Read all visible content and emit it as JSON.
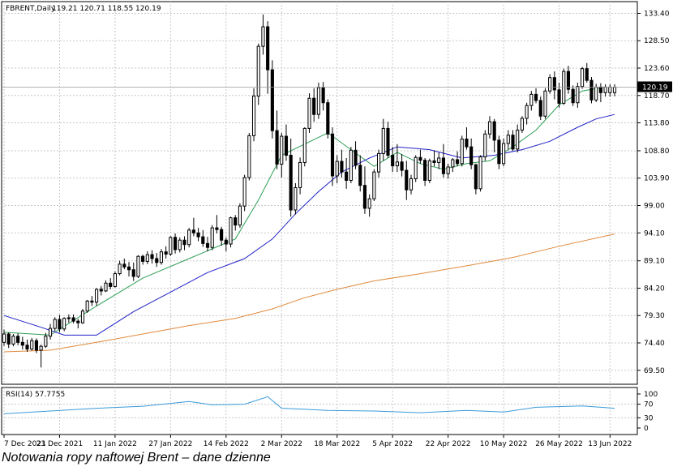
{
  "header": {
    "symbol": "FBRENT,Daily",
    "ohlc": "119.21 120.71 118.55 120.19"
  },
  "current_price_label": "120.19",
  "rsi_label": "RSI(14) 57.7755",
  "caption": "Notowania ropy naftowej Brent – dane dzienne",
  "colors": {
    "ma_fast": "#2e9e55",
    "ma_mid": "#2020c8",
    "ma_slow": "#e08a3c",
    "rsi": "#3a9ad9",
    "grid": "#c8c8c8",
    "candle": "#000000"
  },
  "chart_data": [
    {
      "type": "candlestick",
      "title": "FBRENT,Daily",
      "ylim": [
        67.0,
        135.5
      ],
      "y_ticks": [
        "133.40",
        "128.50",
        "123.60",
        "118.70",
        "113.80",
        "108.80",
        "103.90",
        "99.00",
        "94.10",
        "89.10",
        "84.20",
        "79.30",
        "74.40",
        "69.50"
      ],
      "x_ticks": [
        "7 Dec 2021",
        "23 Dec 2021",
        "11 Jan 2022",
        "27 Jan 2022",
        "14 Feb 2022",
        "2 Mar 2022",
        "18 Mar 2022",
        "5 Apr 2022",
        "22 Apr 2022",
        "10 May 2022",
        "26 May 2022",
        "13 Jun 2022"
      ],
      "x_tick_index": [
        0,
        12,
        24,
        36,
        48,
        60,
        72,
        84,
        96,
        108,
        120,
        131
      ],
      "grid": true,
      "ohlc": [
        [
          74.5,
          76.8,
          73.9,
          76.0
        ],
        [
          76.0,
          76.3,
          73.5,
          74.2
        ],
        [
          74.2,
          76.0,
          73.8,
          75.6
        ],
        [
          75.6,
          76.1,
          74.0,
          74.5
        ],
        [
          74.5,
          75.5,
          73.2,
          74.0
        ],
        [
          74.0,
          75.0,
          72.8,
          73.3
        ],
        [
          73.3,
          75.3,
          73.0,
          74.8
        ],
        [
          74.8,
          75.2,
          72.6,
          73.1
        ],
        [
          73.1,
          74.1,
          70.0,
          73.8
        ],
        [
          73.8,
          76.2,
          73.5,
          75.6
        ],
        [
          75.6,
          77.8,
          75.0,
          77.0
        ],
        [
          77.0,
          79.0,
          76.5,
          78.6
        ],
        [
          78.6,
          79.4,
          76.3,
          76.9
        ],
        [
          76.9,
          79.0,
          76.5,
          78.8
        ],
        [
          78.8,
          79.5,
          78.0,
          78.9
        ],
        [
          78.9,
          79.5,
          77.9,
          78.3
        ],
        [
          78.3,
          78.7,
          77.0,
          78.0
        ],
        [
          78.0,
          80.5,
          77.8,
          80.1
        ],
        [
          80.1,
          82.1,
          79.8,
          81.9
        ],
        [
          81.9,
          82.8,
          81.0,
          81.7
        ],
        [
          81.7,
          84.2,
          81.0,
          84.0
        ],
        [
          84.0,
          84.6,
          82.9,
          83.7
        ],
        [
          83.7,
          85.6,
          83.5,
          85.1
        ],
        [
          85.1,
          86.0,
          84.0,
          84.5
        ],
        [
          84.5,
          87.2,
          84.3,
          86.8
        ],
        [
          86.8,
          89.1,
          86.5,
          88.5
        ],
        [
          88.5,
          89.5,
          87.6,
          88.0
        ],
        [
          88.0,
          88.9,
          86.3,
          87.5
        ],
        [
          87.5,
          88.8,
          85.5,
          86.3
        ],
        [
          86.3,
          90.1,
          86.0,
          89.9
        ],
        [
          89.9,
          90.2,
          88.4,
          89.0
        ],
        [
          89.0,
          90.8,
          88.5,
          90.2
        ],
        [
          90.2,
          91.0,
          88.6,
          89.5
        ],
        [
          89.5,
          90.5,
          88.0,
          88.8
        ],
        [
          88.8,
          91.2,
          88.4,
          90.7
        ],
        [
          90.7,
          91.7,
          89.5,
          90.3
        ],
        [
          90.3,
          93.5,
          90.0,
          93.3
        ],
        [
          93.3,
          94.0,
          90.4,
          91.1
        ],
        [
          91.1,
          93.3,
          90.6,
          92.8
        ],
        [
          92.8,
          93.5,
          91.0,
          92.0
        ],
        [
          92.0,
          95.0,
          91.5,
          94.6
        ],
        [
          94.6,
          96.8,
          93.5,
          94.1
        ],
        [
          94.1,
          95.0,
          92.6,
          93.4
        ],
        [
          93.4,
          94.6,
          91.6,
          92.2
        ],
        [
          92.2,
          93.4,
          90.8,
          91.5
        ],
        [
          91.5,
          95.5,
          91.0,
          95.0
        ],
        [
          95.0,
          97.3,
          94.0,
          94.7
        ],
        [
          94.7,
          95.2,
          91.8,
          92.8
        ],
        [
          92.8,
          93.3,
          90.8,
          92.1
        ],
        [
          92.1,
          97.0,
          91.5,
          96.8
        ],
        [
          96.8,
          97.3,
          94.5,
          95.5
        ],
        [
          95.5,
          99.4,
          95.0,
          98.9
        ],
        [
          98.9,
          104.5,
          98.0,
          104.0
        ],
        [
          104.0,
          112.0,
          103.5,
          111.5
        ],
        [
          111.5,
          120.0,
          110.5,
          118.6
        ],
        [
          118.6,
          128.0,
          117.0,
          127.5
        ],
        [
          127.5,
          133.2,
          126.0,
          131.0
        ],
        [
          131.0,
          132.0,
          119.0,
          123.3
        ],
        [
          123.3,
          125.0,
          111.0,
          112.4
        ],
        [
          112.4,
          116.0,
          105.5,
          106.4
        ],
        [
          106.4,
          112.0,
          104.0,
          111.4
        ],
        [
          111.4,
          113.5,
          107.0,
          108.0
        ],
        [
          108.0,
          111.0,
          97.0,
          98.2
        ],
        [
          98.2,
          103.0,
          97.4,
          102.2
        ],
        [
          102.2,
          107.6,
          101.0,
          106.7
        ],
        [
          106.7,
          113.0,
          106.0,
          112.8
        ],
        [
          112.8,
          119.1,
          112.0,
          118.2
        ],
        [
          118.2,
          120.0,
          114.0,
          115.3
        ],
        [
          115.3,
          121.0,
          114.5,
          120.1
        ],
        [
          120.1,
          121.1,
          116.0,
          117.4
        ],
        [
          117.4,
          118.0,
          111.0,
          111.8
        ],
        [
          111.8,
          113.0,
          102.5,
          104.3
        ],
        [
          104.3,
          108.0,
          103.0,
          106.9
        ],
        [
          106.9,
          109.0,
          104.0,
          105.0
        ],
        [
          105.0,
          107.5,
          102.0,
          103.5
        ],
        [
          103.5,
          109.5,
          103.0,
          108.9
        ],
        [
          108.9,
          110.5,
          105.5,
          106.2
        ],
        [
          106.2,
          108.0,
          101.5,
          102.6
        ],
        [
          102.6,
          106.0,
          97.5,
          98.5
        ],
        [
          98.5,
          101.0,
          97.0,
          100.2
        ],
        [
          100.2,
          105.5,
          99.8,
          105.0
        ],
        [
          105.0,
          109.0,
          104.0,
          108.3
        ],
        [
          108.3,
          114.5,
          107.0,
          112.8
        ],
        [
          112.8,
          114.0,
          107.5,
          108.0
        ],
        [
          108.0,
          109.5,
          105.0,
          106.1
        ],
        [
          106.1,
          110.0,
          105.0,
          106.8
        ],
        [
          106.8,
          108.2,
          104.2,
          105.3
        ],
        [
          105.3,
          107.0,
          100.0,
          101.8
        ],
        [
          101.8,
          104.5,
          101.0,
          103.8
        ],
        [
          103.8,
          108.0,
          103.2,
          107.6
        ],
        [
          107.6,
          109.0,
          106.5,
          107.1
        ],
        [
          107.1,
          107.5,
          102.5,
          103.5
        ],
        [
          103.5,
          107.4,
          103.0,
          107.0
        ],
        [
          107.0,
          108.9,
          106.0,
          106.7
        ],
        [
          106.7,
          108.5,
          105.5,
          107.5
        ],
        [
          107.5,
          110.0,
          104.0,
          104.7
        ],
        [
          104.7,
          106.5,
          103.8,
          105.9
        ],
        [
          105.9,
          107.5,
          105.0,
          107.2
        ],
        [
          107.2,
          108.7,
          106.0,
          106.5
        ],
        [
          106.5,
          111.5,
          106.0,
          110.9
        ],
        [
          110.9,
          113.0,
          109.0,
          109.5
        ],
        [
          109.5,
          111.0,
          105.5,
          106.3
        ],
        [
          106.3,
          106.5,
          101.0,
          102.0
        ],
        [
          102.0,
          108.0,
          101.5,
          107.7
        ],
        [
          107.7,
          112.5,
          107.0,
          111.8
        ],
        [
          111.8,
          115.0,
          111.0,
          114.0
        ],
        [
          114.0,
          114.5,
          108.5,
          110.7
        ],
        [
          110.7,
          111.5,
          105.5,
          106.5
        ],
        [
          106.5,
          111.0,
          106.0,
          110.1
        ],
        [
          110.1,
          112.5,
          109.0,
          111.6
        ],
        [
          111.6,
          112.5,
          108.8,
          109.1
        ],
        [
          109.1,
          113.5,
          108.5,
          112.5
        ],
        [
          112.5,
          115.0,
          112.0,
          114.6
        ],
        [
          114.6,
          117.4,
          113.5,
          116.9
        ],
        [
          116.9,
          119.5,
          116.0,
          118.9
        ],
        [
          118.9,
          120.0,
          117.3,
          117.8
        ],
        [
          117.8,
          118.5,
          114.3,
          115.0
        ],
        [
          115.0,
          120.0,
          114.5,
          119.5
        ],
        [
          119.5,
          122.5,
          119.0,
          121.9
        ],
        [
          121.9,
          123.0,
          118.0,
          119.7
        ],
        [
          119.7,
          121.0,
          116.5,
          117.3
        ],
        [
          117.3,
          123.5,
          117.0,
          123.0
        ],
        [
          123.0,
          124.0,
          119.0,
          119.8
        ],
        [
          119.8,
          120.5,
          116.8,
          117.4
        ],
        [
          117.4,
          121.0,
          116.5,
          120.3
        ],
        [
          120.3,
          123.8,
          119.9,
          123.5
        ],
        [
          123.5,
          124.5,
          121.0,
          121.4
        ],
        [
          121.4,
          122.0,
          117.3,
          117.9
        ],
        [
          117.9,
          120.8,
          117.5,
          120.2
        ],
        [
          120.2,
          120.9,
          117.5,
          119.2
        ],
        [
          119.2,
          120.7,
          118.5,
          120.2
        ],
        [
          119.2,
          120.7,
          118.5,
          120.2
        ],
        [
          119.21,
          120.71,
          118.55,
          120.19
        ]
      ],
      "series": [
        {
          "type": "line",
          "points": [
            [
              0,
              76.3
            ],
            [
              10,
              75.8
            ],
            [
              20,
              81.0
            ],
            [
              30,
              86.0
            ],
            [
              40,
              89.5
            ],
            [
              50,
              93.0
            ],
            [
              55,
              100.0
            ],
            [
              60,
              108.0
            ],
            [
              65,
              110.0
            ],
            [
              70,
              112.0
            ],
            [
              75,
              109.0
            ],
            [
              80,
              106.0
            ],
            [
              85,
              108.5
            ],
            [
              90,
              106.5
            ],
            [
              95,
              105.5
            ],
            [
              100,
              106.5
            ],
            [
              105,
              107.0
            ],
            [
              110,
              109.5
            ],
            [
              115,
              112.5
            ],
            [
              120,
              117.0
            ],
            [
              125,
              119.5
            ],
            [
              130,
              120.2
            ]
          ]
        },
        {
          "type": "line",
          "points": [
            [
              0,
              79.3
            ],
            [
              8,
              77.2
            ],
            [
              13,
              75.8
            ],
            [
              20,
              75.8
            ],
            [
              28,
              80.0
            ],
            [
              36,
              83.5
            ],
            [
              44,
              87.0
            ],
            [
              52,
              89.5
            ],
            [
              58,
              93.0
            ],
            [
              63,
              97.5
            ],
            [
              68,
              101.5
            ],
            [
              73,
              105.0
            ],
            [
              79,
              107.5
            ],
            [
              85,
              109.5
            ],
            [
              92,
              109.0
            ],
            [
              99,
              107.5
            ],
            [
              106,
              108.0
            ],
            [
              112,
              109.0
            ],
            [
              118,
              110.5
            ],
            [
              124,
              113.0
            ],
            [
              128,
              114.5
            ],
            [
              132,
              115.3
            ]
          ]
        },
        {
          "type": "line",
          "points": [
            [
              0,
              72.8
            ],
            [
              10,
              73.1
            ],
            [
              20,
              74.5
            ],
            [
              30,
              76.0
            ],
            [
              40,
              77.5
            ],
            [
              50,
              78.8
            ],
            [
              58,
              80.5
            ],
            [
              65,
              82.5
            ],
            [
              72,
              84.0
            ],
            [
              80,
              85.5
            ],
            [
              90,
              86.8
            ],
            [
              100,
              88.2
            ],
            [
              110,
              89.7
            ],
            [
              120,
              91.7
            ],
            [
              132,
              93.9
            ]
          ]
        }
      ]
    },
    {
      "type": "line",
      "title": "RSI(14) 57.7755",
      "ylim": [
        0,
        100
      ],
      "y_ticks": [
        "100",
        "70",
        "30",
        "0"
      ],
      "y_tick_values": [
        100,
        70,
        30,
        0
      ],
      "points": [
        [
          0,
          42
        ],
        [
          10,
          50
        ],
        [
          20,
          58
        ],
        [
          30,
          64
        ],
        [
          40,
          78
        ],
        [
          45,
          68
        ],
        [
          52,
          70
        ],
        [
          57,
          92
        ],
        [
          60,
          58
        ],
        [
          70,
          52
        ],
        [
          80,
          50
        ],
        [
          90,
          45
        ],
        [
          100,
          52
        ],
        [
          108,
          47
        ],
        [
          115,
          61
        ],
        [
          125,
          65
        ],
        [
          130,
          60
        ],
        [
          132,
          57.8
        ]
      ]
    }
  ]
}
